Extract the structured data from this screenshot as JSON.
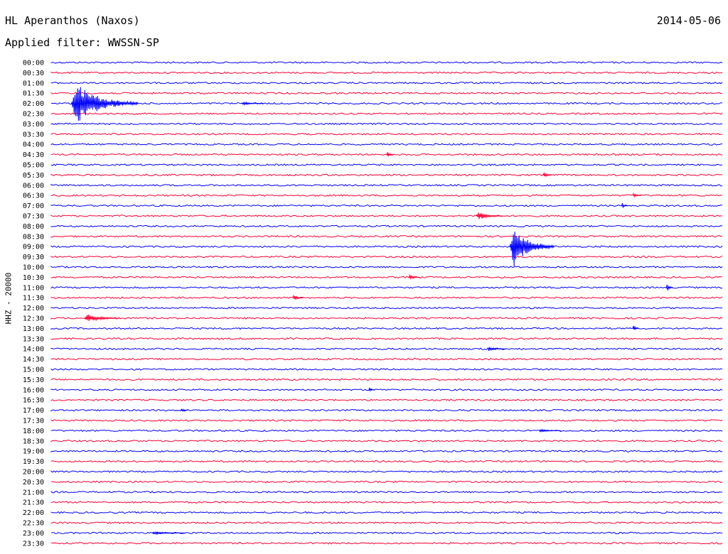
{
  "header": {
    "station": "HL Aperanthos (Naxos)",
    "date": "2014-05-06",
    "filter": "Applied filter: WWSSN-SP"
  },
  "chart_data": {
    "type": "line",
    "title": "HL Aperanthos (Naxos)",
    "ylabel": "HHZ - 20000",
    "colors": {
      "even_trace": "#0000ff",
      "odd_trace": "#ff0033"
    },
    "rows": [
      "00:00",
      "00:30",
      "01:00",
      "01:30",
      "02:00",
      "02:30",
      "03:00",
      "03:30",
      "04:00",
      "04:30",
      "05:00",
      "05:30",
      "06:00",
      "06:30",
      "07:00",
      "07:30",
      "08:00",
      "08:30",
      "09:00",
      "09:30",
      "10:00",
      "10:30",
      "11:00",
      "11:30",
      "12:00",
      "12:30",
      "13:00",
      "13:30",
      "14:00",
      "14:30",
      "15:00",
      "15:30",
      "16:00",
      "16:30",
      "17:00",
      "17:30",
      "18:00",
      "18:30",
      "19:00",
      "19:30",
      "20:00",
      "20:30",
      "21:00",
      "21:30",
      "22:00",
      "22:30",
      "23:00",
      "23:30"
    ],
    "events": [
      {
        "row": "02:00",
        "minute": 0.9,
        "peak_traces": 2.0,
        "duration_min": 3.0,
        "label": ""
      },
      {
        "row": "02:00",
        "minute": 8.5,
        "peak_traces": 0.15,
        "duration_min": 1.0,
        "label": ""
      },
      {
        "row": "04:30",
        "minute": 15.0,
        "peak_traces": 0.35,
        "duration_min": 0.3,
        "label": ""
      },
      {
        "row": "05:30",
        "minute": 22.0,
        "peak_traces": 0.3,
        "duration_min": 0.4,
        "label": ""
      },
      {
        "row": "06:30",
        "minute": 26.0,
        "peak_traces": 0.25,
        "duration_min": 0.4,
        "label": ""
      },
      {
        "row": "07:00",
        "minute": 25.5,
        "peak_traces": 0.3,
        "duration_min": 0.3,
        "label": ""
      },
      {
        "row": "07:30",
        "minute": 19.0,
        "peak_traces": 0.4,
        "duration_min": 1.2,
        "label": ""
      },
      {
        "row": "09:00",
        "minute": 20.5,
        "peak_traces": 2.0,
        "duration_min": 2.0,
        "label": ""
      },
      {
        "row": "10:30",
        "minute": 16.0,
        "peak_traces": 0.3,
        "duration_min": 0.5,
        "label": ""
      },
      {
        "row": "11:00",
        "minute": 27.5,
        "peak_traces": 0.45,
        "duration_min": 0.3,
        "label": ""
      },
      {
        "row": "11:30",
        "minute": 10.8,
        "peak_traces": 0.35,
        "duration_min": 0.5,
        "label": ""
      },
      {
        "row": "12:30",
        "minute": 1.5,
        "peak_traces": 0.4,
        "duration_min": 1.6,
        "label": ""
      },
      {
        "row": "13:00",
        "minute": 26.0,
        "peak_traces": 0.35,
        "duration_min": 0.3,
        "label": ""
      },
      {
        "row": "14:00",
        "minute": 19.5,
        "peak_traces": 0.2,
        "duration_min": 0.8,
        "label": ""
      },
      {
        "row": "16:00",
        "minute": 14.2,
        "peak_traces": 0.2,
        "duration_min": 0.3,
        "label": ""
      },
      {
        "row": "17:00",
        "minute": 5.8,
        "peak_traces": 0.2,
        "duration_min": 0.3,
        "label": ""
      },
      {
        "row": "18:00",
        "minute": 21.8,
        "peak_traces": 0.15,
        "duration_min": 1.0,
        "label": ""
      },
      {
        "row": "23:00",
        "minute": 4.5,
        "peak_traces": 0.15,
        "duration_min": 1.5,
        "label": ""
      }
    ],
    "xlim_minutes": [
      0,
      30
    ],
    "grid": false,
    "legend": "none"
  }
}
